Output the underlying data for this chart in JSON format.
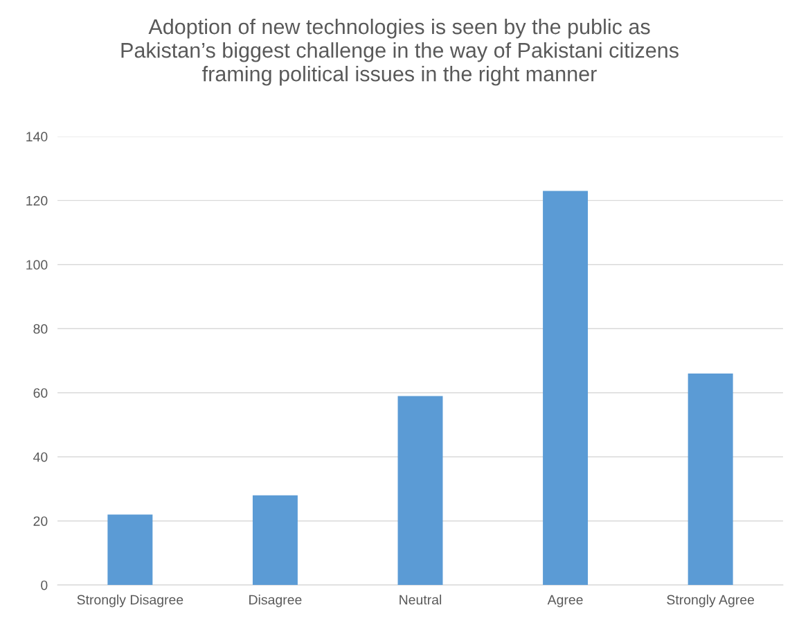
{
  "chart_data": {
    "type": "bar",
    "title": "Adoption of new technologies is seen by the public as\nPakistan’s biggest challenge in the way of Pakistani citizens\nframing political issues in the right manner",
    "categories": [
      "Strongly Disagree",
      "Disagree",
      "Neutral",
      "Agree",
      "Strongly Agree"
    ],
    "values": [
      22,
      28,
      59,
      123,
      66
    ],
    "color": "#5b9bd5",
    "ylim": [
      0,
      140
    ],
    "yticks": [
      0,
      20,
      40,
      60,
      80,
      100,
      120,
      140
    ],
    "grid": "y",
    "legend": false
  }
}
